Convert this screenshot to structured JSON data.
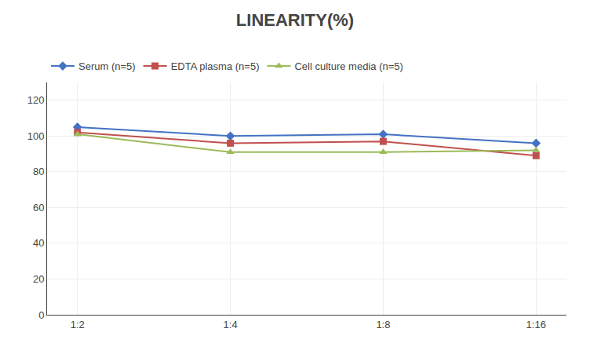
{
  "chart_data": {
    "type": "line",
    "title": "LINEARITY(%)",
    "categories": [
      "1:2",
      "1:4",
      "1:8",
      "1:16"
    ],
    "series": [
      {
        "name": "Serum (n=5)",
        "color": "#4472C4",
        "marker": "diamond",
        "values": [
          105,
          100,
          101,
          96
        ]
      },
      {
        "name": "EDTA plasma (n=5)",
        "color": "#C0504D",
        "marker": "square",
        "values": [
          102,
          96,
          97,
          89
        ]
      },
      {
        "name": "Cell culture media (n=5)",
        "color": "#9BBB59",
        "marker": "triangle-up",
        "values": [
          101,
          91,
          91,
          92
        ]
      }
    ],
    "ylim": [
      0,
      130
    ],
    "yticks": [
      0,
      20,
      40,
      60,
      80,
      100,
      120
    ],
    "grid": true,
    "legend": "top"
  }
}
